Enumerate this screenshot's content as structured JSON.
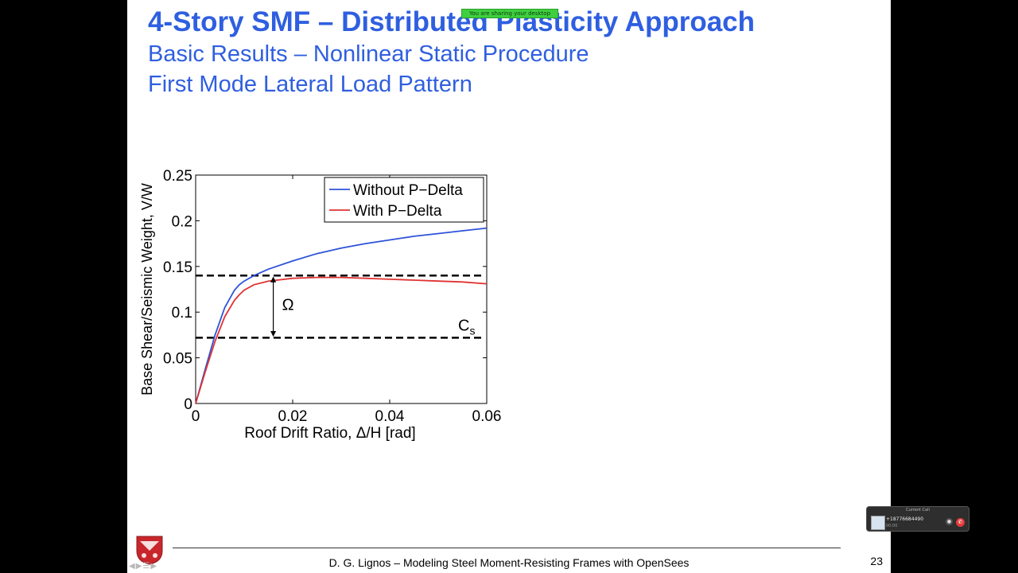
{
  "slide": {
    "title": "4-Story SMF – Distributed Plasticity Approach",
    "subtitle1": "Basic Results – Nonlinear Static Procedure",
    "subtitle2": "First Mode Lateral Load Pattern",
    "share_banner": "You are sharing your desktop",
    "footer": "D. G. Lignos – Modeling Steel Moment-Resisting Frames with OpenSees",
    "page_number": "23",
    "nav_arrows": "◀▶☰▶"
  },
  "call_widget": {
    "title": "Current Call",
    "number": "+18776684490",
    "timer": "00:00",
    "icons": {
      "mute": "microphone-icon",
      "hangup": "hangup-icon"
    }
  },
  "colors": {
    "title_blue": "#2f5fe0",
    "series_without": "#2e53d9",
    "series_with": "#e03232"
  },
  "chart_data": {
    "type": "line",
    "xlabel": "Roof Drift Ratio, Δ/H [rad]",
    "ylabel": "Base Shear/Seismic Weight, V/W",
    "xlim": [
      0,
      0.06
    ],
    "ylim": [
      0,
      0.25
    ],
    "xticks": [
      "0",
      "0.02",
      "0.04",
      "0.06"
    ],
    "yticks": [
      "0",
      "0.05",
      "0.1",
      "0.15",
      "0.2",
      "0.25"
    ],
    "legend_position": "top-right",
    "grid": false,
    "series": [
      {
        "name": "Without P−Delta",
        "color": "#2e53d9",
        "x": [
          0,
          0.002,
          0.004,
          0.006,
          0.008,
          0.009,
          0.01,
          0.012,
          0.015,
          0.02,
          0.025,
          0.03,
          0.035,
          0.04,
          0.045,
          0.05,
          0.055,
          0.06
        ],
        "y": [
          0,
          0.038,
          0.075,
          0.105,
          0.124,
          0.13,
          0.134,
          0.14,
          0.147,
          0.156,
          0.164,
          0.17,
          0.175,
          0.179,
          0.183,
          0.186,
          0.189,
          0.192
        ]
      },
      {
        "name": "With P−Delta",
        "color": "#e03232",
        "x": [
          0,
          0.002,
          0.004,
          0.006,
          0.008,
          0.009,
          0.01,
          0.012,
          0.015,
          0.02,
          0.025,
          0.03,
          0.035,
          0.04,
          0.045,
          0.05,
          0.055,
          0.06
        ],
        "y": [
          0,
          0.035,
          0.068,
          0.095,
          0.113,
          0.119,
          0.124,
          0.13,
          0.134,
          0.137,
          0.138,
          0.138,
          0.137,
          0.136,
          0.135,
          0.134,
          0.133,
          0.131
        ]
      }
    ],
    "reference_lines": [
      {
        "label": "",
        "y": 0.14
      },
      {
        "label": "Cs",
        "y": 0.072
      }
    ],
    "annotations": [
      {
        "text": "Ω",
        "x": 0.016,
        "y_from": 0.072,
        "y_to": 0.14
      }
    ]
  }
}
